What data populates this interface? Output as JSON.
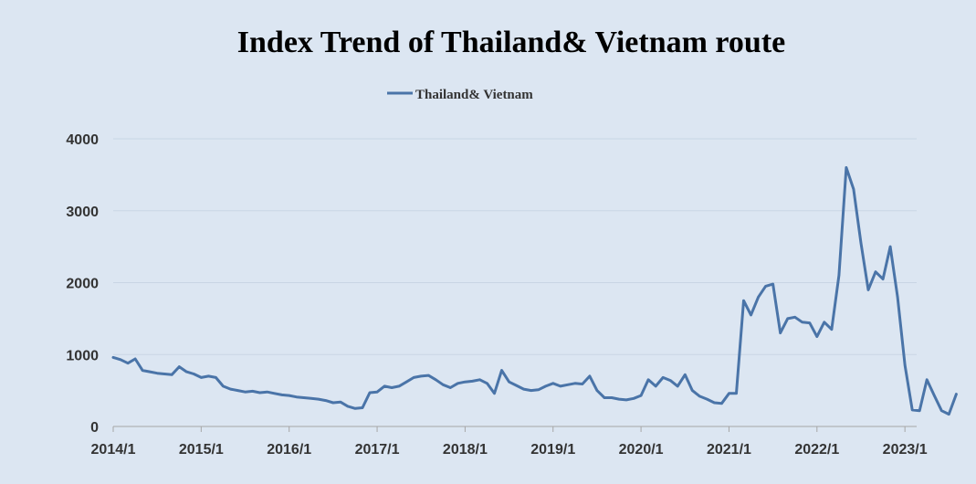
{
  "chart_data": {
    "type": "line",
    "title": "Index Trend of Thailand& Vietnam route",
    "xlabel": "",
    "ylabel": "",
    "ylim": [
      0,
      4000
    ],
    "y_ticks": [
      0,
      1000,
      2000,
      3000,
      4000
    ],
    "x_ticks": [
      "2014/1",
      "2015/1",
      "2016/1",
      "2017/1",
      "2018/1",
      "2019/1",
      "2020/1",
      "2021/1",
      "2022/1",
      "2023/1"
    ],
    "grid": "horizontal",
    "legend": "top-center",
    "colors": {
      "line": "#4a74a8",
      "background": "#dce6f2",
      "grid": "#c9d5e4"
    },
    "series": [
      {
        "name": "Thailand& Vietnam",
        "points": [
          [
            "2014/1",
            960
          ],
          [
            "2014/2",
            930
          ],
          [
            "2014/3",
            880
          ],
          [
            "2014/4",
            940
          ],
          [
            "2014/5",
            780
          ],
          [
            "2014/6",
            760
          ],
          [
            "2014/7",
            740
          ],
          [
            "2014/8",
            730
          ],
          [
            "2014/9",
            720
          ],
          [
            "2014/10",
            830
          ],
          [
            "2014/11",
            760
          ],
          [
            "2014/12",
            730
          ],
          [
            "2015/1",
            680
          ],
          [
            "2015/2",
            700
          ],
          [
            "2015/3",
            680
          ],
          [
            "2015/4",
            560
          ],
          [
            "2015/5",
            520
          ],
          [
            "2015/6",
            500
          ],
          [
            "2015/7",
            480
          ],
          [
            "2015/8",
            490
          ],
          [
            "2015/9",
            470
          ],
          [
            "2015/10",
            480
          ],
          [
            "2015/11",
            460
          ],
          [
            "2015/12",
            440
          ],
          [
            "2016/1",
            430
          ],
          [
            "2016/2",
            410
          ],
          [
            "2016/3",
            400
          ],
          [
            "2016/4",
            390
          ],
          [
            "2016/5",
            380
          ],
          [
            "2016/6",
            360
          ],
          [
            "2016/7",
            330
          ],
          [
            "2016/8",
            340
          ],
          [
            "2016/9",
            280
          ],
          [
            "2016/10",
            250
          ],
          [
            "2016/11",
            260
          ],
          [
            "2016/12",
            470
          ],
          [
            "2017/1",
            480
          ],
          [
            "2017/2",
            560
          ],
          [
            "2017/3",
            540
          ],
          [
            "2017/4",
            560
          ],
          [
            "2017/5",
            620
          ],
          [
            "2017/6",
            680
          ],
          [
            "2017/7",
            700
          ],
          [
            "2017/8",
            710
          ],
          [
            "2017/9",
            650
          ],
          [
            "2017/10",
            580
          ],
          [
            "2017/11",
            540
          ],
          [
            "2017/12",
            600
          ],
          [
            "2018/1",
            620
          ],
          [
            "2018/2",
            630
          ],
          [
            "2018/3",
            650
          ],
          [
            "2018/4",
            600
          ],
          [
            "2018/5",
            460
          ],
          [
            "2018/6",
            780
          ],
          [
            "2018/7",
            620
          ],
          [
            "2018/8",
            570
          ],
          [
            "2018/9",
            520
          ],
          [
            "2018/10",
            500
          ],
          [
            "2018/11",
            510
          ],
          [
            "2018/12",
            560
          ],
          [
            "2019/1",
            600
          ],
          [
            "2019/2",
            560
          ],
          [
            "2019/3",
            580
          ],
          [
            "2019/4",
            600
          ],
          [
            "2019/5",
            590
          ],
          [
            "2019/6",
            700
          ],
          [
            "2019/7",
            500
          ],
          [
            "2019/8",
            400
          ],
          [
            "2019/9",
            400
          ],
          [
            "2019/10",
            380
          ],
          [
            "2019/11",
            370
          ],
          [
            "2019/12",
            390
          ],
          [
            "2020/1",
            430
          ],
          [
            "2020/2",
            650
          ],
          [
            "2020/3",
            560
          ],
          [
            "2020/4",
            680
          ],
          [
            "2020/5",
            640
          ],
          [
            "2020/6",
            560
          ],
          [
            "2020/7",
            720
          ],
          [
            "2020/8",
            500
          ],
          [
            "2020/9",
            420
          ],
          [
            "2020/10",
            380
          ],
          [
            "2020/11",
            330
          ],
          [
            "2020/12",
            320
          ],
          [
            "2021/1",
            460
          ],
          [
            "2021/2",
            460
          ],
          [
            "2021/3",
            1750
          ],
          [
            "2021/4",
            1550
          ],
          [
            "2021/5",
            1800
          ],
          [
            "2021/6",
            1950
          ],
          [
            "2021/7",
            1980
          ],
          [
            "2021/8",
            1300
          ],
          [
            "2021/9",
            1500
          ],
          [
            "2021/10",
            1520
          ],
          [
            "2021/11",
            1450
          ],
          [
            "2021/12",
            1440
          ],
          [
            "2022/1",
            1250
          ],
          [
            "2022/2",
            1450
          ],
          [
            "2022/3",
            1350
          ],
          [
            "2022/4",
            2100
          ],
          [
            "2022/5",
            3600
          ],
          [
            "2022/6",
            3300
          ],
          [
            "2022/7",
            2550
          ],
          [
            "2022/8",
            1900
          ],
          [
            "2022/9",
            2150
          ],
          [
            "2022/10",
            2050
          ],
          [
            "2022/11",
            2500
          ],
          [
            "2022/12",
            1800
          ],
          [
            "2023/1",
            850
          ],
          [
            "2023/2",
            230
          ],
          [
            "2023/3",
            220
          ],
          [
            "2023/4",
            650
          ],
          [
            "2023/5",
            430
          ],
          [
            "2023/6",
            220
          ],
          [
            "2023/7",
            170
          ],
          [
            "2023/8",
            450
          ]
        ]
      }
    ]
  }
}
